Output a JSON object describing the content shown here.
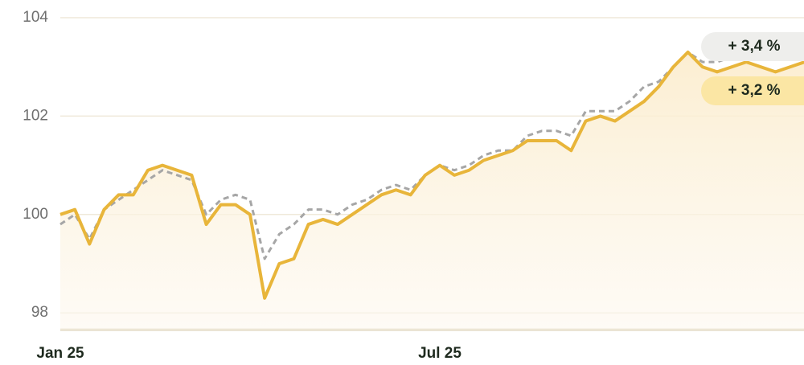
{
  "chart_data": {
    "type": "line",
    "categories": [
      "Jan 25",
      null,
      null,
      null,
      null,
      null,
      null,
      null,
      null,
      null,
      null,
      null,
      null,
      null,
      null,
      null,
      null,
      null,
      null,
      null,
      null,
      null,
      null,
      null,
      null,
      null,
      "Jul 25",
      null,
      null,
      null,
      null,
      null,
      null,
      null,
      null,
      null,
      null,
      null,
      null,
      null,
      null,
      null,
      null,
      null,
      null,
      null,
      null,
      null,
      null,
      null,
      null,
      null
    ],
    "series": [
      {
        "color": "#a6a6a6",
        "dashed": true,
        "badge": "+ 3,4 %",
        "badge_color": "#eeeeec",
        "values": [
          99.8,
          100.0,
          99.5,
          100.1,
          100.3,
          100.5,
          100.7,
          100.9,
          100.8,
          100.7,
          100.0,
          100.3,
          100.4,
          100.3,
          99.1,
          99.6,
          99.8,
          100.1,
          100.1,
          100.0,
          100.2,
          100.3,
          100.5,
          100.6,
          100.5,
          100.8,
          101.0,
          100.9,
          101.0,
          101.2,
          101.3,
          101.3,
          101.6,
          101.7,
          101.7,
          101.6,
          102.1,
          102.1,
          102.1,
          102.3,
          102.6,
          102.7,
          103.0,
          103.3,
          103.1,
          103.1,
          103.2,
          103.2,
          103.3,
          103.2,
          103.2,
          103.3
        ]
      },
      {
        "color": "#e8b53a",
        "dashed": false,
        "area": true,
        "badge": "+ 3,2 %",
        "badge_color": "#fbe6a4",
        "values": [
          100.0,
          100.1,
          99.4,
          100.1,
          100.4,
          100.4,
          100.9,
          101.0,
          100.9,
          100.8,
          99.8,
          100.2,
          100.2,
          100.0,
          98.3,
          99.0,
          99.1,
          99.8,
          99.9,
          99.8,
          100.0,
          100.2,
          100.4,
          100.5,
          100.4,
          100.8,
          101.0,
          100.8,
          100.9,
          101.1,
          101.2,
          101.3,
          101.5,
          101.5,
          101.5,
          101.3,
          101.9,
          102.0,
          101.9,
          102.1,
          102.3,
          102.6,
          103.0,
          103.3,
          103.0,
          102.9,
          103.0,
          103.1,
          103.0,
          102.9,
          103.0,
          103.1
        ]
      }
    ],
    "ylim": [
      97.66,
      104.36
    ],
    "yticks": [
      98,
      100,
      102,
      104
    ],
    "grid": true
  }
}
